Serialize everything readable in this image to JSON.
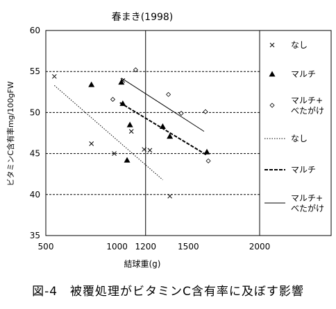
{
  "chart_data": {
    "type": "scatter",
    "title": "春まき(1998)",
    "xlabel": "結球重(g)",
    "ylabel": "ビタミンC含有率mg/100gFW",
    "xlim": [
      500,
      2000
    ],
    "ylim": [
      35,
      60
    ],
    "x_ticks": [
      500,
      1000,
      1200,
      1500,
      2000
    ],
    "x_tick_labels": [
      "500",
      "1000",
      "1200",
      "1500",
      "2000"
    ],
    "y_ticks": [
      35,
      40,
      45,
      50,
      55,
      60
    ],
    "y_tick_labels": [
      "35",
      "40",
      "45",
      "50",
      "55",
      "60"
    ],
    "grid": "horizontal dashed at 40, 45, 50, 55",
    "reference_line_x": 1200,
    "legend_position": "right",
    "series": [
      {
        "name": "なし",
        "marker": "x",
        "points": [
          [
            560,
            54.4
          ],
          [
            820,
            46.2
          ],
          [
            980,
            45.0
          ],
          [
            1040,
            53.9
          ],
          [
            1100,
            47.7
          ],
          [
            1190,
            45.5
          ],
          [
            1230,
            45.4
          ],
          [
            1370,
            39.8
          ]
        ]
      },
      {
        "name": "マルチ",
        "marker": "triangle",
        "points": [
          [
            820,
            53.4
          ],
          [
            1030,
            53.7
          ],
          [
            1040,
            51.1
          ],
          [
            1070,
            44.2
          ],
          [
            1090,
            48.5
          ],
          [
            1320,
            48.3
          ],
          [
            1370,
            47.1
          ],
          [
            1630,
            45.2
          ]
        ]
      },
      {
        "name": "マルチ+\nべたがけ",
        "marker": "diamond",
        "points": [
          [
            970,
            51.6
          ],
          [
            1130,
            55.2
          ],
          [
            1360,
            52.2
          ],
          [
            1450,
            49.9
          ],
          [
            1620,
            50.1
          ],
          [
            1640,
            44.1
          ]
        ]
      }
    ],
    "trend_lines": [
      {
        "name": "なし",
        "style": "dotted",
        "from": [
          560,
          53.3
        ],
        "to": [
          1320,
          41.8
        ]
      },
      {
        "name": "マルチ",
        "style": "dashed",
        "from": [
          1020,
          51.2
        ],
        "to": [
          1630,
          44.8
        ]
      },
      {
        "name": "マルチ+\nべたがけ",
        "style": "solid",
        "from": [
          1030,
          54.2
        ],
        "to": [
          1610,
          47.7
        ]
      }
    ]
  },
  "legend": {
    "entries": [
      {
        "symbol": "x",
        "label": "なし"
      },
      {
        "symbol": "triangle",
        "label": "マルチ"
      },
      {
        "symbol": "diamond",
        "label": "マルチ+\nべたがけ"
      },
      {
        "symbol": "dotted-line",
        "label": "なし"
      },
      {
        "symbol": "dashed-line",
        "label": "マルチ"
      },
      {
        "symbol": "solid-line",
        "label": "マルチ+\nべたがけ"
      }
    ]
  },
  "caption": "図-4　被覆処理がビタミンC含有率に及ぼす影響"
}
